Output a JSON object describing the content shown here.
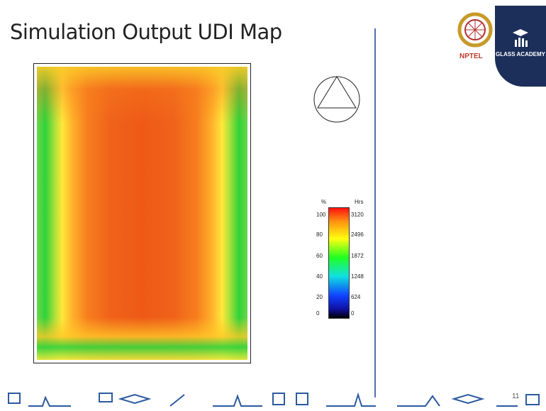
{
  "header": {
    "title": "Simulation Output UDI Map"
  },
  "legend": {
    "left_title": "%",
    "right_title": "Hrs",
    "left_labels": [
      "100",
      "80",
      "60",
      "40",
      "20",
      "0"
    ],
    "right_labels": [
      "3120",
      "2496",
      "1872",
      "1248",
      "624",
      "0"
    ]
  },
  "logo": {
    "left": "NPTEL",
    "right": "GLASS ACADEMY"
  },
  "footer": {
    "page": "11"
  }
}
